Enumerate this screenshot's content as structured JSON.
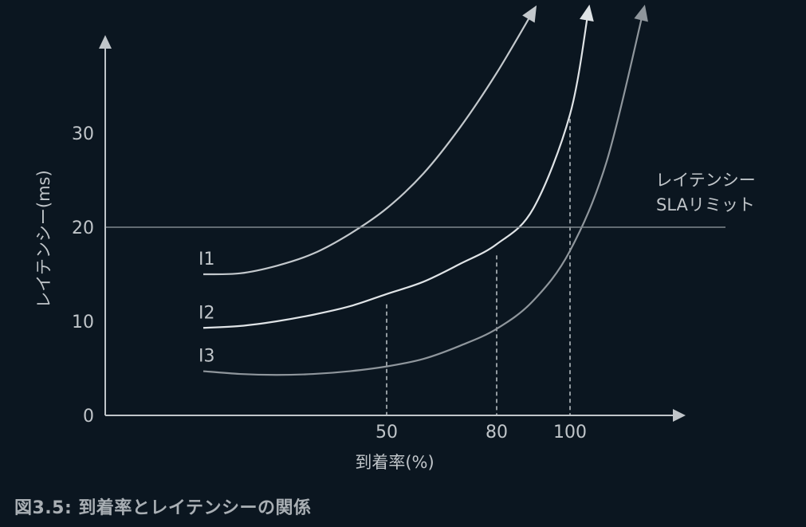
{
  "caption": "図3.5: 到着率とレイテンシーの関係",
  "chart_data": {
    "type": "line",
    "xlabel": "到着率(%)",
    "ylabel": "レイテンシー(ms)",
    "x_ticks": [
      "50",
      "80",
      "100"
    ],
    "y_ticks": [
      "0",
      "10",
      "20",
      "30"
    ],
    "xlim": [
      0,
      125
    ],
    "ylim": [
      0,
      40
    ],
    "series": [
      {
        "name": "I1",
        "x": [
          0,
          10,
          20,
          30,
          40,
          50,
          60,
          70,
          80,
          90
        ],
        "y": [
          15,
          15.1,
          15.9,
          17.2,
          19.3,
          22.0,
          25.7,
          30.6,
          36.4,
          43.0
        ]
      },
      {
        "name": "I2",
        "x": [
          0,
          10,
          20,
          30,
          40,
          50,
          60,
          70,
          80,
          90,
          100,
          105
        ],
        "y": [
          9.3,
          9.5,
          10.0,
          10.7,
          11.6,
          12.9,
          14.2,
          16.1,
          18.2,
          22.0,
          32.0,
          43.0
        ]
      },
      {
        "name": "I3",
        "x": [
          0,
          10,
          20,
          30,
          40,
          50,
          60,
          70,
          80,
          90,
          100,
          110,
          120
        ],
        "y": [
          4.7,
          4.4,
          4.3,
          4.4,
          4.7,
          5.2,
          6.0,
          7.4,
          9.2,
          12.2,
          17.5,
          27.0,
          43.0
        ]
      }
    ],
    "reference_line": {
      "y": 20,
      "label_lines": [
        "レイテンシー",
        "SLAリミット"
      ]
    },
    "dashed_lines": [
      {
        "x": 50,
        "y": 11.8
      },
      {
        "x": 80,
        "y": 17.0
      },
      {
        "x": 100,
        "y": 31.5
      }
    ],
    "colors": {
      "background": "#0b1620",
      "axis": "#c0c5c9",
      "I1": "#c3c8cc",
      "I2": "#dfe3e6",
      "I3": "#8f969c",
      "sla": "#7f878d",
      "text": "#c0c5c9"
    },
    "grid": false
  }
}
